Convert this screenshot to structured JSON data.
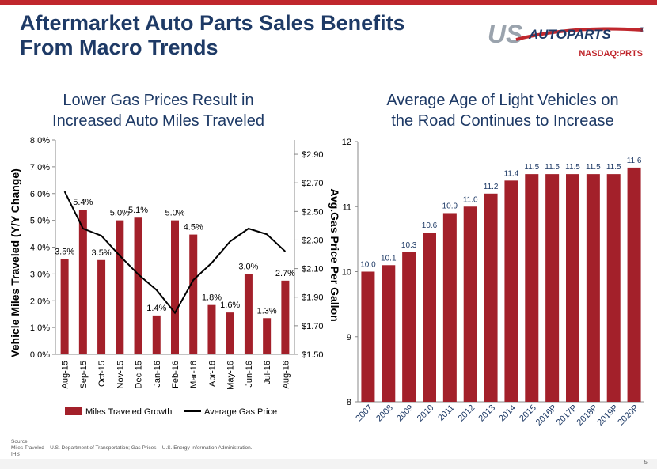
{
  "slide": {
    "title_line1": "Aftermarket Auto Parts Sales Benefits",
    "title_line2": "From Macro Trends",
    "logo_us": "US",
    "logo_autoparts": "AUTOPARTS",
    "logo_reg": "®",
    "ticker": "NASDAQ:PRTS",
    "source_line1": "Source:",
    "source_line2": "Miles Traveled – U.S. Department of Transportation; Gas Prices – U.S. Energy Information Administration.",
    "source_line3": "IHS",
    "page_number": "5"
  },
  "colors": {
    "brand_navy": "#1e3a66",
    "bar_red": "#a3202a",
    "line_black": "#000000",
    "logo_gray": "#9aa3ad"
  },
  "chart_data": [
    {
      "type": "bar",
      "title_line1": "Lower Gas Prices Result in",
      "title_line2": "Increased Auto Miles Traveled",
      "categories": [
        "Aug-15",
        "Sep-15",
        "Oct-15",
        "Nov-15",
        "Dec-15",
        "Jan-16",
        "Feb-16",
        "Mar-16",
        "Apr-16",
        "May-16",
        "Jun-16",
        "Jul-16",
        "Aug-16"
      ],
      "series": [
        {
          "name": "Miles Traveled Growth",
          "kind": "bar",
          "axis": "left",
          "values": [
            3.55,
            5.4,
            3.52,
            5.0,
            5.1,
            1.45,
            5.0,
            4.47,
            1.84,
            1.56,
            3.0,
            1.35,
            2.75
          ],
          "labels": [
            "3.5%",
            "5.4%",
            "3.5%",
            "5.0%",
            "5.1%",
            "1.4%",
            "5.0%",
            "4.5%",
            "1.8%",
            "1.6%",
            "3.0%",
            "1.3%",
            "2.7%"
          ]
        },
        {
          "name": "Average Gas Price",
          "kind": "line",
          "axis": "right",
          "values": [
            2.64,
            2.38,
            2.33,
            2.19,
            2.06,
            1.95,
            1.79,
            2.02,
            2.14,
            2.29,
            2.38,
            2.34,
            2.22
          ]
        }
      ],
      "ylabel": "Vehicle Miles Traveled (Y/Y Change)",
      "y2label": "Avg.Gas Price Per Gallon",
      "ylim": [
        0,
        8
      ],
      "yticks": [
        "0.0%",
        "1.0%",
        "2.0%",
        "3.0%",
        "4.0%",
        "5.0%",
        "6.0%",
        "7.0%",
        "8.0%"
      ],
      "y2lim": [
        1.5,
        3.0
      ],
      "y2ticks": [
        "$1.50",
        "$1.70",
        "$1.90",
        "$2.10",
        "$2.30",
        "$2.50",
        "$2.70",
        "$2.90"
      ],
      "legend": "bottom",
      "grid": false
    },
    {
      "type": "bar",
      "title_line1": "Average Age of Light Vehicles on",
      "title_line2": "the Road Continues to Increase",
      "categories": [
        "2007",
        "2008",
        "2009",
        "2010",
        "2011",
        "2012",
        "2013",
        "2014",
        "2015",
        "2016P",
        "2017P",
        "2018P",
        "2019P",
        "2020P"
      ],
      "values": [
        10.0,
        10.1,
        10.3,
        10.6,
        10.9,
        11.0,
        11.2,
        11.4,
        11.5,
        11.5,
        11.5,
        11.5,
        11.5,
        11.6
      ],
      "labels": [
        "10.0",
        "10.1",
        "10.3",
        "10.6",
        "10.9",
        "11.0",
        "11.2",
        "11.4",
        "11.5",
        "11.5",
        "11.5",
        "11.5",
        "11.5",
        "11.6"
      ],
      "ylim": [
        8,
        12
      ],
      "yticks": [
        "8",
        "9",
        "10",
        "11",
        "12"
      ],
      "grid": false
    }
  ]
}
